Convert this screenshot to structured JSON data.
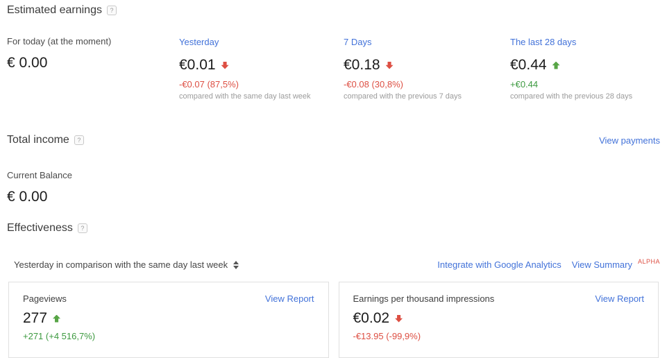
{
  "icons": {
    "help": "?"
  },
  "estimated_earnings": {
    "title": "Estimated earnings",
    "columns": [
      {
        "label": "For today (at the moment)",
        "value": "€ 0.00",
        "trend": null,
        "delta": "",
        "compare": ""
      },
      {
        "label": "Yesterday",
        "value": "€0.01",
        "trend": "down",
        "delta": "-€0.07 (87,5%)",
        "compare": "compared with the same day last week"
      },
      {
        "label": "7 Days",
        "value": "€0.18",
        "trend": "down",
        "delta": "-€0.08 (30,8%)",
        "compare": "compared with the previous 7 days"
      },
      {
        "label": "The last 28 days",
        "value": "€0.44",
        "trend": "up",
        "delta": "+€0.44",
        "compare": "compared with the previous 28 days"
      }
    ]
  },
  "total_income": {
    "title": "Total income",
    "view_payments_label": "View payments",
    "balance_label": "Current Balance",
    "balance_value": "€ 0.00"
  },
  "effectiveness": {
    "title": "Effectiveness",
    "comparison_selector": "Yesterday in comparison with the same day last week",
    "integrate_link": "Integrate with Google Analytics",
    "view_summary_link": "View Summary",
    "alpha_badge": "ALPHA",
    "cards": [
      {
        "label": "Pageviews",
        "view_report": "View Report",
        "value": "277",
        "trend": "up",
        "delta": "+271 (+4 516,7%)"
      },
      {
        "label": "Earnings per thousand impressions",
        "view_report": "View Report",
        "value": "€0.02",
        "trend": "down",
        "delta": "-€13.95 (-99,9%)"
      }
    ]
  },
  "colors": {
    "link_blue": "#4272d9",
    "negative_red": "#dd4f43",
    "positive_green": "#3d9a40",
    "muted_gray": "#9b9b9b"
  }
}
